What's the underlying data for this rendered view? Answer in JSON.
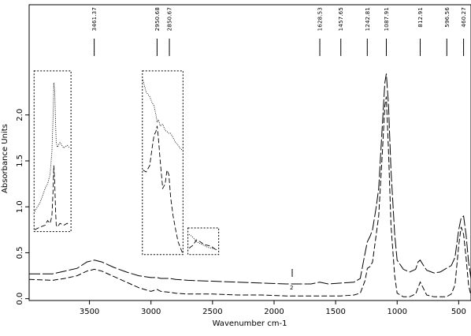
{
  "chart_data": {
    "type": "line",
    "title": "",
    "xlabel": "Wavenumber cm-1",
    "ylabel": "Absorbance Units",
    "xlim": [
      3990,
      400
    ],
    "ylim": [
      -0.02,
      3.2
    ],
    "x_reversed": true,
    "x_ticks": [
      {
        "value": 3500,
        "label": "3500"
      },
      {
        "value": 3000,
        "label": "3000"
      },
      {
        "value": 2500,
        "label": "2500"
      },
      {
        "value": 2000,
        "label": "2000"
      },
      {
        "value": 1500,
        "label": "1500"
      },
      {
        "value": 1000,
        "label": "1000"
      },
      {
        "value": 500,
        "label": "500"
      }
    ],
    "y_ticks": [
      {
        "value": 0.0,
        "label": "0.0"
      },
      {
        "value": 0.5,
        "label": "0.5"
      },
      {
        "value": 1.0,
        "label": "1.0"
      },
      {
        "value": 1.5,
        "label": "1.5"
      },
      {
        "value": 2.0,
        "label": "2.0"
      }
    ],
    "peak_labels": [
      {
        "x": 3461.37,
        "label": "3461.37"
      },
      {
        "x": 2950.68,
        "label": "2950.68"
      },
      {
        "x": 2850.67,
        "label": "2850.67"
      },
      {
        "x": 1628.53,
        "label": "1628.53"
      },
      {
        "x": 1457.65,
        "label": "1457.65"
      },
      {
        "x": 1242.81,
        "label": "1242.81"
      },
      {
        "x": 1087.91,
        "label": "1087.91"
      },
      {
        "x": 812.91,
        "label": "812.91"
      },
      {
        "x": 596.56,
        "label": "596.56"
      },
      {
        "x": 460.27,
        "label": "460.27"
      }
    ],
    "series": [
      {
        "style": "long-dash",
        "x": [
          3990,
          3800,
          3700,
          3600,
          3520,
          3460,
          3400,
          3300,
          3200,
          3100,
          3000,
          2950,
          2920,
          2850,
          2800,
          2700,
          2500,
          2300,
          2100,
          1900,
          1700,
          1628,
          1560,
          1457,
          1350,
          1300,
          1260,
          1242,
          1220,
          1200,
          1170,
          1150,
          1120,
          1100,
          1088,
          1070,
          1050,
          1020,
          1000,
          950,
          900,
          850,
          830,
          813,
          790,
          760,
          700,
          650,
          600,
          560,
          530,
          500,
          480,
          460,
          440,
          420,
          400
        ],
        "y": [
          0.27,
          0.27,
          0.3,
          0.33,
          0.4,
          0.42,
          0.4,
          0.34,
          0.29,
          0.25,
          0.23,
          0.23,
          0.22,
          0.22,
          0.21,
          0.2,
          0.19,
          0.18,
          0.17,
          0.16,
          0.16,
          0.18,
          0.16,
          0.17,
          0.18,
          0.22,
          0.5,
          0.62,
          0.68,
          0.75,
          1.0,
          1.2,
          1.9,
          2.35,
          2.45,
          2.1,
          1.4,
          0.7,
          0.42,
          0.32,
          0.29,
          0.32,
          0.4,
          0.42,
          0.37,
          0.31,
          0.28,
          0.29,
          0.33,
          0.36,
          0.45,
          0.75,
          0.88,
          0.9,
          0.7,
          0.4,
          0.22
        ]
      },
      {
        "style": "short-dash",
        "x": [
          3990,
          3800,
          3700,
          3600,
          3520,
          3460,
          3400,
          3300,
          3200,
          3100,
          3000,
          2950,
          2920,
          2850,
          2800,
          2700,
          2500,
          2300,
          2100,
          1900,
          1850,
          1700,
          1628,
          1560,
          1457,
          1350,
          1300,
          1260,
          1242,
          1220,
          1200,
          1150,
          1120,
          1100,
          1088,
          1070,
          1050,
          1020,
          1000,
          950,
          900,
          850,
          830,
          813,
          790,
          760,
          700,
          650,
          600,
          560,
          530,
          500,
          480,
          460,
          440,
          420,
          400
        ],
        "y": [
          0.21,
          0.2,
          0.22,
          0.25,
          0.3,
          0.32,
          0.3,
          0.24,
          0.18,
          0.12,
          0.08,
          0.1,
          0.08,
          0.07,
          0.06,
          0.05,
          0.05,
          0.04,
          0.04,
          0.03,
          0.03,
          0.03,
          0.03,
          0.03,
          0.03,
          0.04,
          0.06,
          0.2,
          0.33,
          0.35,
          0.4,
          0.9,
          1.6,
          2.1,
          2.2,
          1.6,
          0.8,
          0.25,
          0.06,
          0.02,
          0.02,
          0.05,
          0.12,
          0.18,
          0.12,
          0.04,
          0.02,
          0.02,
          0.02,
          0.05,
          0.15,
          0.58,
          0.78,
          0.7,
          0.45,
          0.15,
          0.03
        ]
      }
    ],
    "inset_boxes": [
      {
        "x_range": [
          3950,
          3650
        ],
        "y_range": [
          0.73,
          2.48
        ],
        "x": [
          3945,
          3900,
          3860,
          3840,
          3820,
          3805,
          3795,
          3790,
          3782,
          3775,
          3770,
          3760,
          3740,
          3710,
          3680,
          3660
        ],
        "y": [
          0.95,
          1.05,
          1.2,
          1.25,
          1.35,
          1.6,
          2.0,
          2.35,
          2.25,
          1.9,
          1.7,
          1.65,
          1.7,
          1.64,
          1.67,
          1.64
        ]
      },
      {
        "x_range": [
          3950,
          3650
        ],
        "y_range": [
          0.73,
          2.48
        ],
        "x": [
          3945,
          3900,
          3860,
          3840,
          3820,
          3805,
          3795,
          3790,
          3782,
          3775,
          3770,
          3760,
          3740,
          3710,
          3680,
          3660
        ],
        "y": [
          0.75,
          0.78,
          0.8,
          0.85,
          0.82,
          0.9,
          1.2,
          1.45,
          1.25,
          0.95,
          0.8,
          0.78,
          0.82,
          0.8,
          0.82,
          0.8
        ]
      },
      {
        "x_range": [
          3070,
          2740
        ],
        "y_range": [
          0.48,
          2.48
        ],
        "x": [
          3065,
          3040,
          3010,
          2990,
          2975,
          2960,
          2950,
          2940,
          2925,
          2905,
          2885,
          2870,
          2855,
          2840,
          2820,
          2800,
          2780,
          2760,
          2745
        ],
        "y": [
          2.38,
          2.25,
          2.2,
          2.13,
          2.1,
          2.0,
          1.92,
          1.95,
          1.88,
          1.9,
          1.83,
          1.82,
          1.8,
          1.8,
          1.75,
          1.7,
          1.67,
          1.63,
          1.62
        ]
      },
      {
        "x_range": [
          3070,
          2740
        ],
        "y_range": [
          0.48,
          2.48
        ],
        "x": [
          3065,
          3040,
          3010,
          2990,
          2975,
          2960,
          2950,
          2940,
          2925,
          2905,
          2885,
          2870,
          2855,
          2840,
          2820,
          2800,
          2780,
          2760,
          2745
        ],
        "y": [
          1.4,
          1.38,
          1.45,
          1.65,
          1.78,
          1.82,
          1.88,
          1.75,
          1.5,
          1.2,
          1.25,
          1.4,
          1.35,
          1.1,
          0.9,
          0.75,
          0.62,
          0.55,
          0.5
        ]
      },
      {
        "x_range": [
          2700,
          2450
        ],
        "y_range": [
          0.48,
          0.77
        ],
        "x": [
          2690,
          2660,
          2630,
          2600,
          2570,
          2540,
          2510,
          2480,
          2460
        ],
        "y": [
          0.7,
          0.67,
          0.62,
          0.6,
          0.58,
          0.56,
          0.55,
          0.54,
          0.53
        ]
      },
      {
        "x_range": [
          2700,
          2450
        ],
        "y_range": [
          0.48,
          0.77
        ],
        "x": [
          2690,
          2660,
          2630,
          2600,
          2570,
          2540,
          2510,
          2480,
          2460
        ],
        "y": [
          0.55,
          0.58,
          0.64,
          0.62,
          0.59,
          0.58,
          0.57,
          0.54,
          0.52
        ]
      }
    ]
  }
}
